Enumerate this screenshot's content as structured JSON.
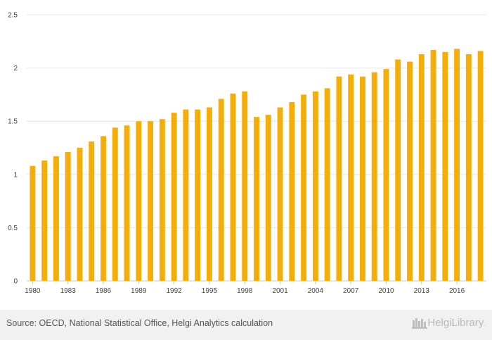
{
  "chart_data": {
    "type": "bar",
    "title": "",
    "xlabel": "",
    "ylabel": "",
    "ylim": [
      0,
      2.5
    ],
    "yticks": [
      0,
      0.5,
      1,
      1.5,
      2,
      2.5
    ],
    "ytick_labels": [
      "0",
      "0.5",
      "1",
      "1.5",
      "2",
      "2.5"
    ],
    "grid": true,
    "bar_color": "#f5ad0a",
    "categories": [
      "1980",
      "1981",
      "1982",
      "1983",
      "1984",
      "1985",
      "1986",
      "1987",
      "1988",
      "1989",
      "1990",
      "1991",
      "1992",
      "1993",
      "1994",
      "1995",
      "1996",
      "1997",
      "1998",
      "1999",
      "2000",
      "2001",
      "2002",
      "2003",
      "2004",
      "2005",
      "2006",
      "2007",
      "2008",
      "2009",
      "2010",
      "2011",
      "2012",
      "2013",
      "2014",
      "2015",
      "2016",
      "2017",
      "2018"
    ],
    "xtick_labels": [
      "1980",
      "1983",
      "1986",
      "1989",
      "1992",
      "1995",
      "1998",
      "2001",
      "2004",
      "2007",
      "2010",
      "2013",
      "2016"
    ],
    "values": [
      1.08,
      1.13,
      1.17,
      1.21,
      1.25,
      1.31,
      1.36,
      1.44,
      1.46,
      1.5,
      1.5,
      1.52,
      1.58,
      1.61,
      1.61,
      1.63,
      1.71,
      1.76,
      1.78,
      1.54,
      1.56,
      1.63,
      1.68,
      1.75,
      1.78,
      1.81,
      1.92,
      1.94,
      1.92,
      1.96,
      1.99,
      2.08,
      2.06,
      2.13,
      2.17,
      2.15,
      2.18,
      2.13,
      2.16
    ]
  },
  "footer": {
    "source": "Source: OECD, National Statistical Office, Helgi Analytics calculation",
    "logo_main": "HelgiLibrary",
    "logo_suffix": "."
  }
}
